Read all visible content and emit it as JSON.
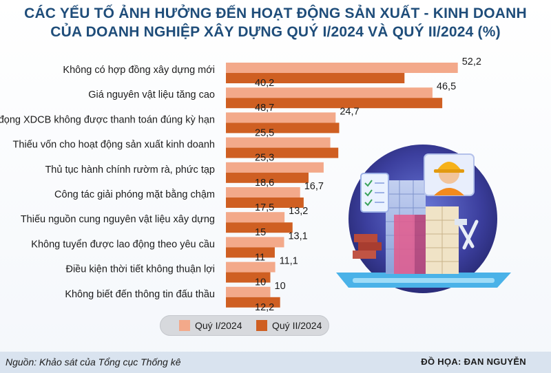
{
  "title_line1": "CÁC YẾU TỐ ẢNH HƯỞNG ĐẾN HOẠT ĐỘNG SẢN XUẤT - KINH DOANH",
  "title_line2": "CỦA DOANH NGHIỆP XÂY DỰNG QUÝ I/2024 VÀ QUÝ II/2024 (%)",
  "source": "Nguồn: Khảo sát của Tổng cục Thống kê",
  "credit": "ĐỒ HỌA: ĐAN NGUYỄN",
  "colors": {
    "q1": "#f3a98a",
    "q2": "#cf5f22",
    "title": "#1f4d7a",
    "footer": "#d9e3ef"
  },
  "chart_data": {
    "type": "bar",
    "orientation": "horizontal",
    "title": "CÁC YẾU TỐ ẢNH HƯỞNG ĐẾN HOẠT ĐỘNG SẢN XUẤT - KINH DOANH CỦA DOANH NGHIỆP XÂY DỰNG QUÝ I/2024 VÀ QUÝ II/2024 (%)",
    "categories": [
      "Không có hợp đồng xây dựng mới",
      "Giá nguyên vật liệu tăng cao",
      "Nợ đọng XDCB không được thanh toán đúng kỳ hạn",
      "Thiếu vốn cho hoạt động sản xuất kinh doanh",
      "Thủ tục hành chính rườm rà, phức tạp",
      "Công tác giải phóng mặt bằng chậm",
      "Thiếu nguồn cung nguyên vật liệu xây dựng",
      "Không tuyển được lao động theo yêu cầu",
      "Điều kiện thời tiết không thuận lợi",
      "Không biết đến thông tin đấu thầu"
    ],
    "series": [
      {
        "name": "Quý I/2024",
        "values": [
          52.2,
          46.5,
          24.7,
          23.5,
          22.0,
          16.7,
          13.2,
          13.1,
          11.1,
          10
        ],
        "labels": [
          "52,2",
          "46,5",
          "24,7",
          "",
          "",
          "16,7",
          "13,2",
          "13,1",
          "11,1",
          "10"
        ]
      },
      {
        "name": "Quý II/2024",
        "values": [
          40.2,
          48.7,
          25.5,
          25.3,
          18.6,
          17.5,
          15,
          11,
          10,
          12.2
        ],
        "labels": [
          "40,2",
          "48,7",
          "25,5",
          "25,3",
          "18,6",
          "17,5",
          "15",
          "11",
          "10",
          "12,2"
        ]
      }
    ],
    "legend_position": "bottom",
    "grid": false
  }
}
